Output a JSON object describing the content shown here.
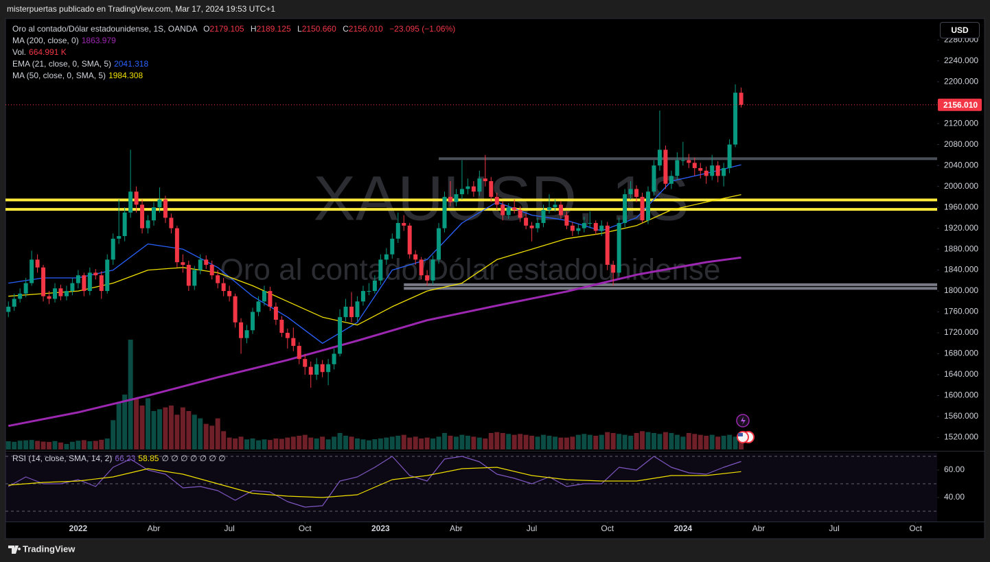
{
  "header": {
    "publisher": "misterpuertas publicado en TradingView.com, Mar 17, 2024 19:53 UTC+1",
    "currency": "USD",
    "brand": "TradingView"
  },
  "chart_data": {
    "type": "candlestick",
    "title": "Oro al contado/Dólar estadounidense, 1S, OANDA",
    "watermark": "XAUUSD, 1S",
    "watermark_sub": "Oro al contado/Dólar estadounidense",
    "ohlc_names": [
      "O",
      "H",
      "L",
      "C"
    ],
    "ohlc_labels": [
      "2179.105",
      "2189.125",
      "2150.660",
      "2156.010"
    ],
    "change_label": "−23.095 (−1.06%)",
    "up_color": "#089981",
    "down_color": "#f23645",
    "candles": [
      [
        1760,
        1780,
        1750,
        1770
      ],
      [
        1770,
        1795,
        1762,
        1785
      ],
      [
        1785,
        1805,
        1778,
        1795
      ],
      [
        1795,
        1825,
        1788,
        1815
      ],
      [
        1815,
        1877,
        1810,
        1860
      ],
      [
        1860,
        1870,
        1835,
        1845
      ],
      [
        1845,
        1850,
        1780,
        1790
      ],
      [
        1790,
        1800,
        1775,
        1785
      ],
      [
        1785,
        1815,
        1778,
        1805
      ],
      [
        1805,
        1812,
        1782,
        1790
      ],
      [
        1790,
        1810,
        1782,
        1800
      ],
      [
        1800,
        1825,
        1792,
        1815
      ],
      [
        1815,
        1840,
        1805,
        1830
      ],
      [
        1830,
        1835,
        1790,
        1800
      ],
      [
        1800,
        1845,
        1792,
        1835
      ],
      [
        1835,
        1842,
        1822,
        1830
      ],
      [
        1830,
        1838,
        1785,
        1800
      ],
      [
        1800,
        1870,
        1795,
        1860
      ],
      [
        1860,
        1910,
        1850,
        1900
      ],
      [
        1900,
        1975,
        1890,
        1905
      ],
      [
        1905,
        1960,
        1895,
        1950
      ],
      [
        1950,
        2070,
        1940,
        1990
      ],
      [
        1990,
        2000,
        1950,
        1965
      ],
      [
        1965,
        1975,
        1910,
        1920
      ],
      [
        1920,
        1945,
        1910,
        1935
      ],
      [
        1935,
        1970,
        1925,
        1960
      ],
      [
        1960,
        1998,
        1950,
        1975
      ],
      [
        1975,
        1982,
        1930,
        1940
      ],
      [
        1940,
        1948,
        1910,
        1920
      ],
      [
        1920,
        1925,
        1845,
        1855
      ],
      [
        1855,
        1870,
        1835,
        1850
      ],
      [
        1850,
        1858,
        1800,
        1810
      ],
      [
        1810,
        1848,
        1802,
        1840
      ],
      [
        1840,
        1870,
        1832,
        1860
      ],
      [
        1860,
        1868,
        1842,
        1850
      ],
      [
        1850,
        1858,
        1822,
        1830
      ],
      [
        1830,
        1840,
        1805,
        1815
      ],
      [
        1815,
        1825,
        1790,
        1800
      ],
      [
        1800,
        1810,
        1780,
        1790
      ],
      [
        1790,
        1795,
        1730,
        1740
      ],
      [
        1740,
        1748,
        1680,
        1710
      ],
      [
        1710,
        1735,
        1700,
        1725
      ],
      [
        1725,
        1768,
        1718,
        1760
      ],
      [
        1760,
        1790,
        1752,
        1780
      ],
      [
        1780,
        1810,
        1772,
        1800
      ],
      [
        1800,
        1808,
        1762,
        1770
      ],
      [
        1770,
        1778,
        1735,
        1745
      ],
      [
        1745,
        1752,
        1712,
        1720
      ],
      [
        1720,
        1728,
        1690,
        1710
      ],
      [
        1710,
        1730,
        1685,
        1695
      ],
      [
        1695,
        1702,
        1660,
        1670
      ],
      [
        1670,
        1680,
        1640,
        1655
      ],
      [
        1655,
        1665,
        1615,
        1640
      ],
      [
        1640,
        1672,
        1630,
        1660
      ],
      [
        1660,
        1668,
        1635,
        1645
      ],
      [
        1645,
        1670,
        1620,
        1660
      ],
      [
        1660,
        1690,
        1650,
        1680
      ],
      [
        1680,
        1765,
        1675,
        1750
      ],
      [
        1750,
        1785,
        1742,
        1770
      ],
      [
        1770,
        1798,
        1740,
        1750
      ],
      [
        1750,
        1790,
        1742,
        1780
      ],
      [
        1780,
        1810,
        1772,
        1800
      ],
      [
        1800,
        1815,
        1792,
        1800
      ],
      [
        1800,
        1830,
        1795,
        1820
      ],
      [
        1820,
        1870,
        1812,
        1860
      ],
      [
        1860,
        1882,
        1850,
        1870
      ],
      [
        1870,
        1910,
        1862,
        1900
      ],
      [
        1900,
        1950,
        1892,
        1930
      ],
      [
        1930,
        1945,
        1915,
        1925
      ],
      [
        1925,
        1930,
        1862,
        1870
      ],
      [
        1870,
        1878,
        1850,
        1860
      ],
      [
        1860,
        1865,
        1822,
        1830
      ],
      [
        1830,
        1840,
        1810,
        1820
      ],
      [
        1820,
        1868,
        1812,
        1860
      ],
      [
        1860,
        1930,
        1852,
        1920
      ],
      [
        1920,
        1990,
        1912,
        1980
      ],
      [
        1980,
        2010,
        1962,
        1970
      ],
      [
        1970,
        1995,
        1962,
        1985
      ],
      [
        1985,
        2050,
        1975,
        1995
      ],
      [
        1995,
        2015,
        1985,
        2000
      ],
      [
        2000,
        2010,
        1980,
        1990
      ],
      [
        1990,
        2030,
        1982,
        2015
      ],
      [
        2015,
        2060,
        2000,
        2010
      ],
      [
        2010,
        2018,
        1970,
        1980
      ],
      [
        1980,
        1988,
        1955,
        1965
      ],
      [
        1965,
        1972,
        1935,
        1945
      ],
      [
        1945,
        1968,
        1938,
        1960
      ],
      [
        1960,
        1975,
        1948,
        1955
      ],
      [
        1955,
        1962,
        1932,
        1940
      ],
      [
        1940,
        1948,
        1918,
        1925
      ],
      [
        1925,
        1932,
        1895,
        1920
      ],
      [
        1920,
        1940,
        1912,
        1930
      ],
      [
        1930,
        1965,
        1922,
        1955
      ],
      [
        1955,
        1985,
        1948,
        1960
      ],
      [
        1960,
        1975,
        1952,
        1965
      ],
      [
        1965,
        1972,
        1938,
        1945
      ],
      [
        1945,
        1952,
        1918,
        1925
      ],
      [
        1925,
        1932,
        1905,
        1915
      ],
      [
        1915,
        1928,
        1908,
        1920
      ],
      [
        1920,
        1942,
        1912,
        1930
      ],
      [
        1930,
        1952,
        1920,
        1930
      ],
      [
        1930,
        1935,
        1908,
        1915
      ],
      [
        1915,
        1935,
        1905,
        1925
      ],
      [
        1925,
        1932,
        1840,
        1850
      ],
      [
        1850,
        1858,
        1810,
        1835
      ],
      [
        1835,
        1940,
        1828,
        1930
      ],
      [
        1930,
        1995,
        1922,
        1985
      ],
      [
        1985,
        2010,
        1975,
        1995
      ],
      [
        1995,
        2002,
        1970,
        1980
      ],
      [
        1980,
        1988,
        1930,
        1935
      ],
      [
        1935,
        2000,
        1928,
        1990
      ],
      [
        1990,
        2050,
        1982,
        2040
      ],
      [
        2040,
        2145,
        2030,
        2070
      ],
      [
        2070,
        2078,
        1995,
        2005
      ],
      [
        2005,
        2030,
        1995,
        2020
      ],
      [
        2020,
        2065,
        2012,
        2050
      ],
      [
        2050,
        2085,
        2040,
        2050
      ],
      [
        2050,
        2062,
        2035,
        2045
      ],
      [
        2045,
        2055,
        2020,
        2035
      ],
      [
        2035,
        2045,
        2015,
        2030
      ],
      [
        2030,
        2038,
        2005,
        2020
      ],
      [
        2020,
        2060,
        2012,
        2040
      ],
      [
        2040,
        2048,
        2008,
        2020
      ],
      [
        2020,
        2045,
        2000,
        2035
      ],
      [
        2035,
        2090,
        2025,
        2080
      ],
      [
        2080,
        2195,
        2075,
        2179.105
      ],
      [
        2179.105,
        2189.125,
        2150.66,
        2156.01
      ]
    ],
    "xlim": [
      -0.5,
      159.7
    ],
    "xticks": [
      {
        "value": 12,
        "label": "2022"
      },
      {
        "value": 25,
        "label": "Abr"
      },
      {
        "value": 38,
        "label": "Jul"
      },
      {
        "value": 51,
        "label": "Oct"
      },
      {
        "value": 64,
        "label": "2023"
      },
      {
        "value": 77,
        "label": "Abr"
      },
      {
        "value": 90,
        "label": "Jul"
      },
      {
        "value": 103,
        "label": "Oct"
      },
      {
        "value": 116,
        "label": "2024"
      },
      {
        "value": 129,
        "label": "Abr"
      },
      {
        "value": 142,
        "label": "Jul"
      },
      {
        "value": 156,
        "label": "Oct"
      }
    ],
    "ylim": [
      1497,
      2317
    ],
    "yticks": [
      {
        "value": 1520,
        "label": "1520.000"
      },
      {
        "value": 1560,
        "label": "1560.000"
      },
      {
        "value": 1600,
        "label": "1600.000"
      },
      {
        "value": 1640,
        "label": "1640.000"
      },
      {
        "value": 1680,
        "label": "1680.000"
      },
      {
        "value": 1720,
        "label": "1720.000"
      },
      {
        "value": 1760,
        "label": "1760.000"
      },
      {
        "value": 1800,
        "label": "1800.000"
      },
      {
        "value": 1840,
        "label": "1840.000"
      },
      {
        "value": 1880,
        "label": "1880.000"
      },
      {
        "value": 1920,
        "label": "1920.000"
      },
      {
        "value": 1960,
        "label": "1960.000"
      },
      {
        "value": 2000,
        "label": "2000.000"
      },
      {
        "value": 2040,
        "label": "2040.000"
      },
      {
        "value": 2080,
        "label": "2080.000"
      },
      {
        "value": 2120,
        "label": "2120.000"
      },
      {
        "value": 2160,
        "label": "2160.000"
      },
      {
        "value": 2200,
        "label": "2200.000"
      },
      {
        "value": 2240,
        "label": "2240.000"
      },
      {
        "value": 2280,
        "label": "2280.000"
      }
    ],
    "overlays": [
      {
        "name": "MA (200, close, 0)",
        "color": "#9c27b0",
        "x": [
          0,
          12,
          24,
          36,
          48,
          60,
          72,
          84,
          96,
          108,
          120,
          126
        ],
        "values": [
          1542,
          1568,
          1600,
          1635,
          1668,
          1705,
          1744,
          1772,
          1799,
          1831,
          1855,
          1863.979
        ]
      },
      {
        "name": "EMA (21, close, 0, SMA, 5)",
        "color": "#2962ff",
        "x": [
          0,
          6,
          12,
          18,
          24,
          30,
          36,
          42,
          48,
          54,
          60,
          66,
          72,
          78,
          84,
          90,
          96,
          102,
          108,
          114,
          120,
          126
        ],
        "values": [
          1815,
          1825,
          1825,
          1840,
          1890,
          1880,
          1845,
          1790,
          1750,
          1700,
          1740,
          1840,
          1860,
          1930,
          1970,
          1945,
          1935,
          1915,
          1940,
          2010,
          2025,
          2041.318
        ]
      },
      {
        "name": "MA (50, close, 0, SMA, 5)",
        "color": "#f0e000",
        "x": [
          0,
          6,
          12,
          18,
          24,
          30,
          36,
          42,
          48,
          54,
          60,
          66,
          72,
          78,
          84,
          90,
          96,
          102,
          108,
          114,
          120,
          126
        ],
        "values": [
          1790,
          1795,
          1800,
          1815,
          1840,
          1845,
          1835,
          1810,
          1780,
          1750,
          1735,
          1770,
          1800,
          1815,
          1860,
          1880,
          1900,
          1910,
          1925,
          1955,
          1970,
          1984.308
        ]
      }
    ],
    "volume": {
      "name": "Vol.",
      "label": "664.991 K",
      "ylim": [
        0,
        6000
      ],
      "up_color": "#0b4d44",
      "down_color": "#6e1f27",
      "values": [
        450,
        420,
        480,
        500,
        520,
        470,
        430,
        410,
        460,
        380,
        300,
        420,
        480,
        510,
        450,
        470,
        530,
        600,
        1600,
        2600,
        3000,
        6000,
        2800,
        2400,
        2800,
        2100,
        2200,
        2300,
        2400,
        1900,
        2300,
        2100,
        1900,
        1700,
        1400,
        1300,
        1700,
        1000,
        650,
        600,
        700,
        550,
        600,
        500,
        550,
        520,
        600,
        580,
        650,
        700,
        750,
        800,
        650,
        600,
        700,
        550,
        700,
        900,
        750,
        700,
        600,
        550,
        500,
        560,
        600,
        650,
        700,
        750,
        800,
        650,
        700,
        600,
        650,
        600,
        700,
        900,
        750,
        700,
        800,
        750,
        700,
        650,
        600,
        900,
        950,
        900,
        850,
        800,
        850,
        800,
        750,
        700,
        800,
        750,
        700,
        650,
        650,
        700,
        800,
        850,
        800,
        750,
        800,
        950,
        900,
        850,
        800,
        750,
        900,
        1000,
        950,
        900,
        850,
        950,
        900,
        800,
        700,
        900,
        850,
        800,
        750,
        800,
        700,
        750,
        800,
        700,
        664.991
      ]
    },
    "levels": [
      {
        "value": 2053,
        "from": 74,
        "color": "#4a4e57"
      },
      {
        "value": 1974,
        "from": -0.5,
        "color": "#ffeb3b"
      },
      {
        "value": 1956,
        "from": -0.5,
        "color": "#ffeb3b"
      },
      {
        "value": 1812,
        "from": 68,
        "color": "#787b86"
      },
      {
        "value": 1805,
        "from": 68,
        "color": "#787b86"
      }
    ],
    "rsi": {
      "name": "RSI (14, close, SMA, 14, 2)",
      "extra": "∅ ∅ ∅ ∅ ∅ ∅ ∅",
      "ylim": [
        22.5,
        72.5
      ],
      "yticks": [
        {
          "value": 60,
          "label": "60.00"
        },
        {
          "value": 40,
          "label": "40.00"
        }
      ],
      "bands": [
        70,
        50,
        30
      ],
      "series": [
        {
          "color": "#7e57c2",
          "x": [
            0,
            3,
            6,
            9,
            12,
            15,
            18,
            21,
            24,
            27,
            30,
            33,
            36,
            39,
            42,
            45,
            48,
            51,
            54,
            57,
            60,
            63,
            66,
            69,
            72,
            75,
            78,
            81,
            84,
            87,
            90,
            93,
            96,
            99,
            102,
            105,
            108,
            111,
            114,
            117,
            120,
            123,
            126
          ],
          "values": [
            48,
            55,
            50,
            50,
            53,
            48,
            62,
            68,
            60,
            57,
            47,
            48,
            45,
            38,
            45,
            44,
            37,
            33,
            34,
            52,
            55,
            62,
            70,
            56,
            52,
            68,
            70,
            66,
            57,
            54,
            50,
            55,
            48,
            50,
            50,
            62,
            60,
            70,
            62,
            58,
            57,
            62,
            66.23
          ]
        },
        {
          "color": "#f0e000",
          "x": [
            0,
            6,
            12,
            18,
            24,
            30,
            36,
            42,
            48,
            54,
            60,
            66,
            72,
            78,
            84,
            90,
            96,
            102,
            108,
            114,
            120,
            126
          ],
          "values": [
            49,
            51,
            52,
            55,
            61,
            57,
            50,
            43,
            41,
            40,
            42,
            53,
            56,
            61,
            62,
            56,
            53,
            52,
            52,
            56,
            56,
            58.85
          ]
        }
      ]
    }
  }
}
